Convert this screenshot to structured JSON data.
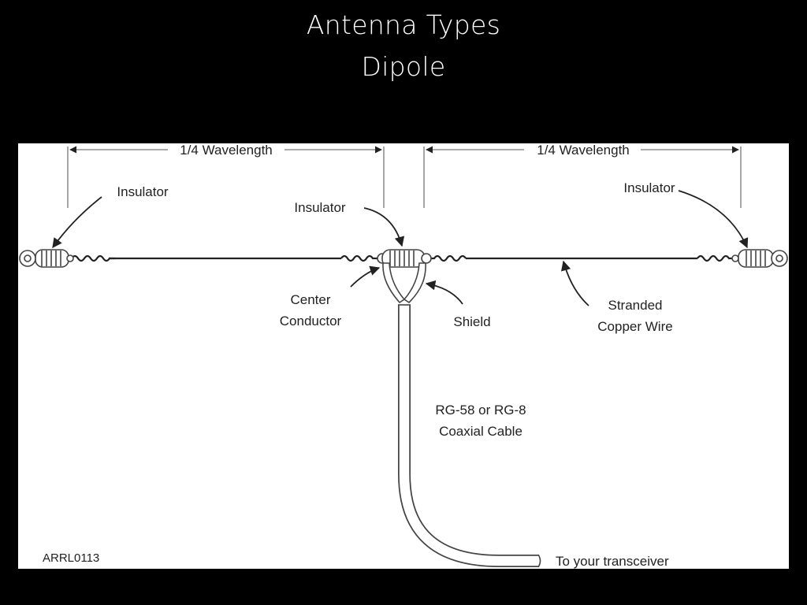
{
  "slide": {
    "title": "Antenna Types",
    "subtitle": "Dipole"
  },
  "diagram": {
    "dimension_left": "1/4 Wavelength",
    "dimension_right": "1/4 Wavelength",
    "insulator_left": "Insulator",
    "insulator_center": "Insulator",
    "insulator_right": "Insulator",
    "center_conductor_line1": "Center",
    "center_conductor_line2": "Conductor",
    "shield": "Shield",
    "stranded_line1": "Stranded",
    "stranded_line2": "Copper Wire",
    "coax_line1": "RG-58 or RG-8",
    "coax_line2": "Coaxial Cable",
    "transceiver": "To your transceiver",
    "credit": "ARRL0113"
  },
  "colors": {
    "background": "#000000",
    "panel": "#ffffff",
    "ink": "#222222"
  }
}
